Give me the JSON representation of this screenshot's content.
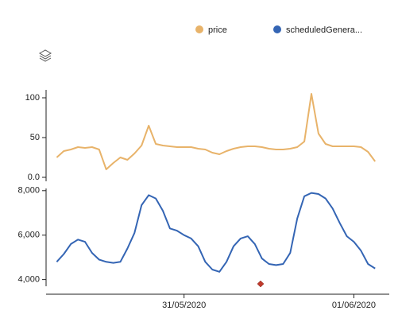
{
  "chart_data": {
    "type": "line",
    "x": [
      -18,
      -17,
      -16,
      -15,
      -14,
      -13,
      -12,
      -11,
      -10,
      -9,
      -8,
      -7,
      -6,
      -5,
      -4,
      -3,
      -2,
      -1,
      0,
      1,
      2,
      3,
      4,
      5,
      6,
      7,
      8,
      9,
      10,
      11,
      12,
      13,
      14,
      15,
      16,
      17,
      18,
      19,
      20,
      21,
      22,
      23,
      24,
      25,
      26,
      27
    ],
    "xlim": [
      -19.5,
      29
    ],
    "xticks": [
      {
        "value": 0,
        "label": "31/05/2020"
      },
      {
        "value": 24,
        "label": "01/06/2020"
      }
    ],
    "ylim": [
      -5,
      110
    ],
    "yticks": [
      {
        "value": 0,
        "label": "0.0"
      },
      50,
      100
    ],
    "y2lim": [
      3700,
      8100
    ],
    "y2ticks": [
      {
        "value": 4000,
        "label": "4,000"
      },
      {
        "value": 6000,
        "label": "6,000"
      },
      {
        "value": 8000,
        "label": "8,000"
      }
    ],
    "series": [
      {
        "name": "price",
        "color": "#e8b36a",
        "values": [
          25,
          33,
          35,
          38,
          37,
          38,
          35,
          10,
          18,
          25,
          22,
          30,
          40,
          65,
          42,
          40,
          39,
          38,
          38,
          38,
          36,
          35,
          31,
          29,
          33,
          36,
          38,
          39,
          39,
          38,
          36,
          35,
          35,
          36,
          38,
          45,
          105,
          55,
          42,
          39,
          39,
          39,
          39,
          38,
          32,
          20
        ]
      },
      {
        "name": "scheduledGenera...",
        "color": "#3465b4",
        "axis": "y2",
        "values": [
          4800,
          5150,
          5600,
          5800,
          5700,
          5200,
          4900,
          4800,
          4750,
          4800,
          5400,
          6100,
          7350,
          7800,
          7650,
          7100,
          6300,
          6200,
          6000,
          5850,
          5500,
          4800,
          4450,
          4350,
          4800,
          5500,
          5850,
          5950,
          5600,
          4950,
          4700,
          4650,
          4700,
          5200,
          6750,
          7750,
          7900,
          7850,
          7650,
          7200,
          6550,
          5950,
          5700,
          5300,
          4700,
          4500
        ]
      }
    ]
  }
}
